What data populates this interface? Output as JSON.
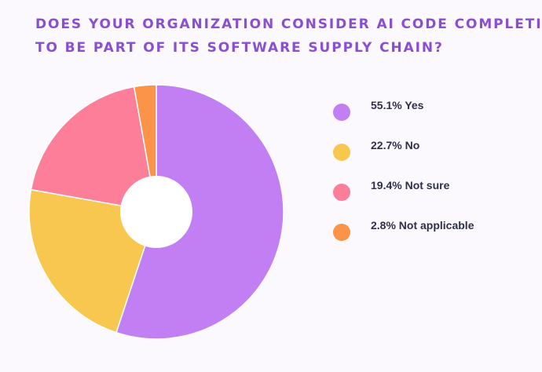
{
  "chart_data": {
    "type": "pie",
    "title_lines": [
      "DOES YOUR ORGANIZATION CONSIDER AI CODE COMPLETION",
      "TO BE PART OF ITS SOFTWARE SUPPLY CHAIN?"
    ],
    "slices": [
      {
        "label": "Yes",
        "value": 55.1,
        "legend": "55.1% Yes",
        "color": "#c17ff3"
      },
      {
        "label": "No",
        "value": 22.7,
        "legend": "22.7% No",
        "color": "#f8c74f"
      },
      {
        "label": "Not sure",
        "value": 19.4,
        "legend": "19.4% Not sure",
        "color": "#fc7e99"
      },
      {
        "label": "Not applicable",
        "value": 2.8,
        "legend": "2.8% Not applicable",
        "color": "#fb9449"
      }
    ],
    "legend_position": "right",
    "start_angle": "top",
    "direction": "clockwise",
    "style": "donut"
  }
}
